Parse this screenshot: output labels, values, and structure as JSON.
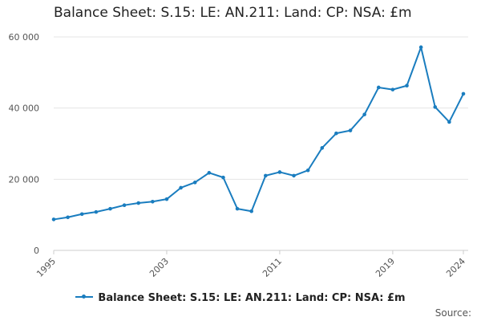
{
  "title": "Balance Sheet: S.15: LE: AN.211: Land: CP: NSA: £m",
  "source_label": "Source:",
  "colors": {
    "series": "#1a7dbf",
    "grid": "#e4e4e4",
    "axis": "#cccccc"
  },
  "chart_data": {
    "type": "line",
    "title": "Balance Sheet: S.15: LE: AN.211: Land: CP: NSA: £m",
    "xlabel": "",
    "ylabel": "",
    "x": [
      1995,
      1996,
      1997,
      1998,
      1999,
      2000,
      2001,
      2002,
      2003,
      2004,
      2005,
      2006,
      2007,
      2008,
      2009,
      2010,
      2011,
      2012,
      2013,
      2014,
      2015,
      2016,
      2017,
      2018,
      2019,
      2020,
      2021,
      2022,
      2023,
      2024
    ],
    "x_ticks": [
      1995,
      2003,
      2011,
      2019,
      2024
    ],
    "y_ticks": [
      0,
      20000,
      40000,
      60000
    ],
    "y_tick_labels": [
      "0",
      "20 000",
      "40 000",
      "60 000"
    ],
    "ylim": [
      0,
      60000
    ],
    "grid": true,
    "legend_position": "bottom",
    "series": [
      {
        "name": "Balance Sheet: S.15: LE: AN.211: Land: CP: NSA: £m",
        "values": [
          8700,
          9300,
          10200,
          10800,
          11700,
          12700,
          13300,
          13700,
          14400,
          17600,
          19100,
          21800,
          20500,
          11700,
          11000,
          21000,
          22000,
          21000,
          22500,
          28800,
          32900,
          33700,
          38200,
          45800,
          45200,
          46300,
          57100,
          40300,
          36100,
          44000
        ]
      }
    ]
  }
}
